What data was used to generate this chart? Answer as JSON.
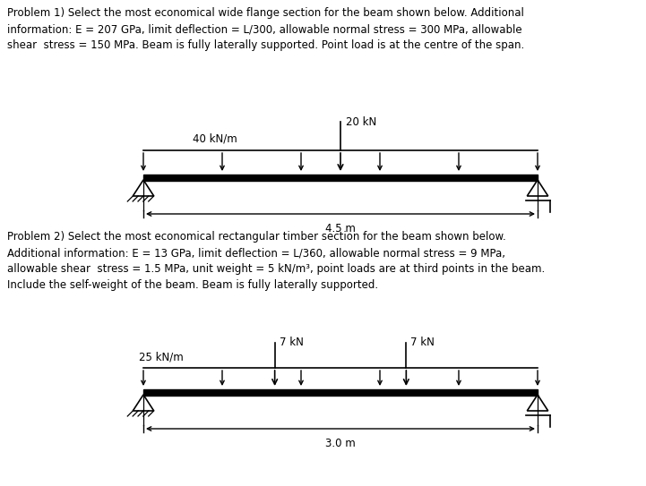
{
  "bg_color": "#ffffff",
  "text_color": "#000000",
  "problem1_text": "Problem 1) Select the most economical wide flange section for the beam shown below. Additional\ninformation: E = 207 GPa, limit deflection = L/300, allowable normal stress = 300 MPa, allowable\nshear  stress = 150 MPa. Beam is fully laterally supported. Point load is at the centre of the span.",
  "problem2_text": "Problem 2) Select the most economical rectangular timber section for the beam shown below.\nAdditional information: E = 13 GPa, limit deflection = L/360, allowable normal stress = 9 MPa,\nallowable shear  stress = 1.5 MPa, unit weight = 5 kN/m³, point loads are at third points in the beam.\nInclude the self-weight of the beam. Beam is fully laterally supported.",
  "p1_udl_label": "40 kN/m",
  "p1_point_label": "20 kN",
  "p1_span_label": "4.5 m",
  "p2_udl_label": "25 kN/m",
  "p2_point1_label": "7 kN",
  "p2_point2_label": "7 kN",
  "p2_span_label": "3.0 m",
  "line_color": "#000000",
  "font_size_text": 8.5,
  "font_size_label": 8.5
}
